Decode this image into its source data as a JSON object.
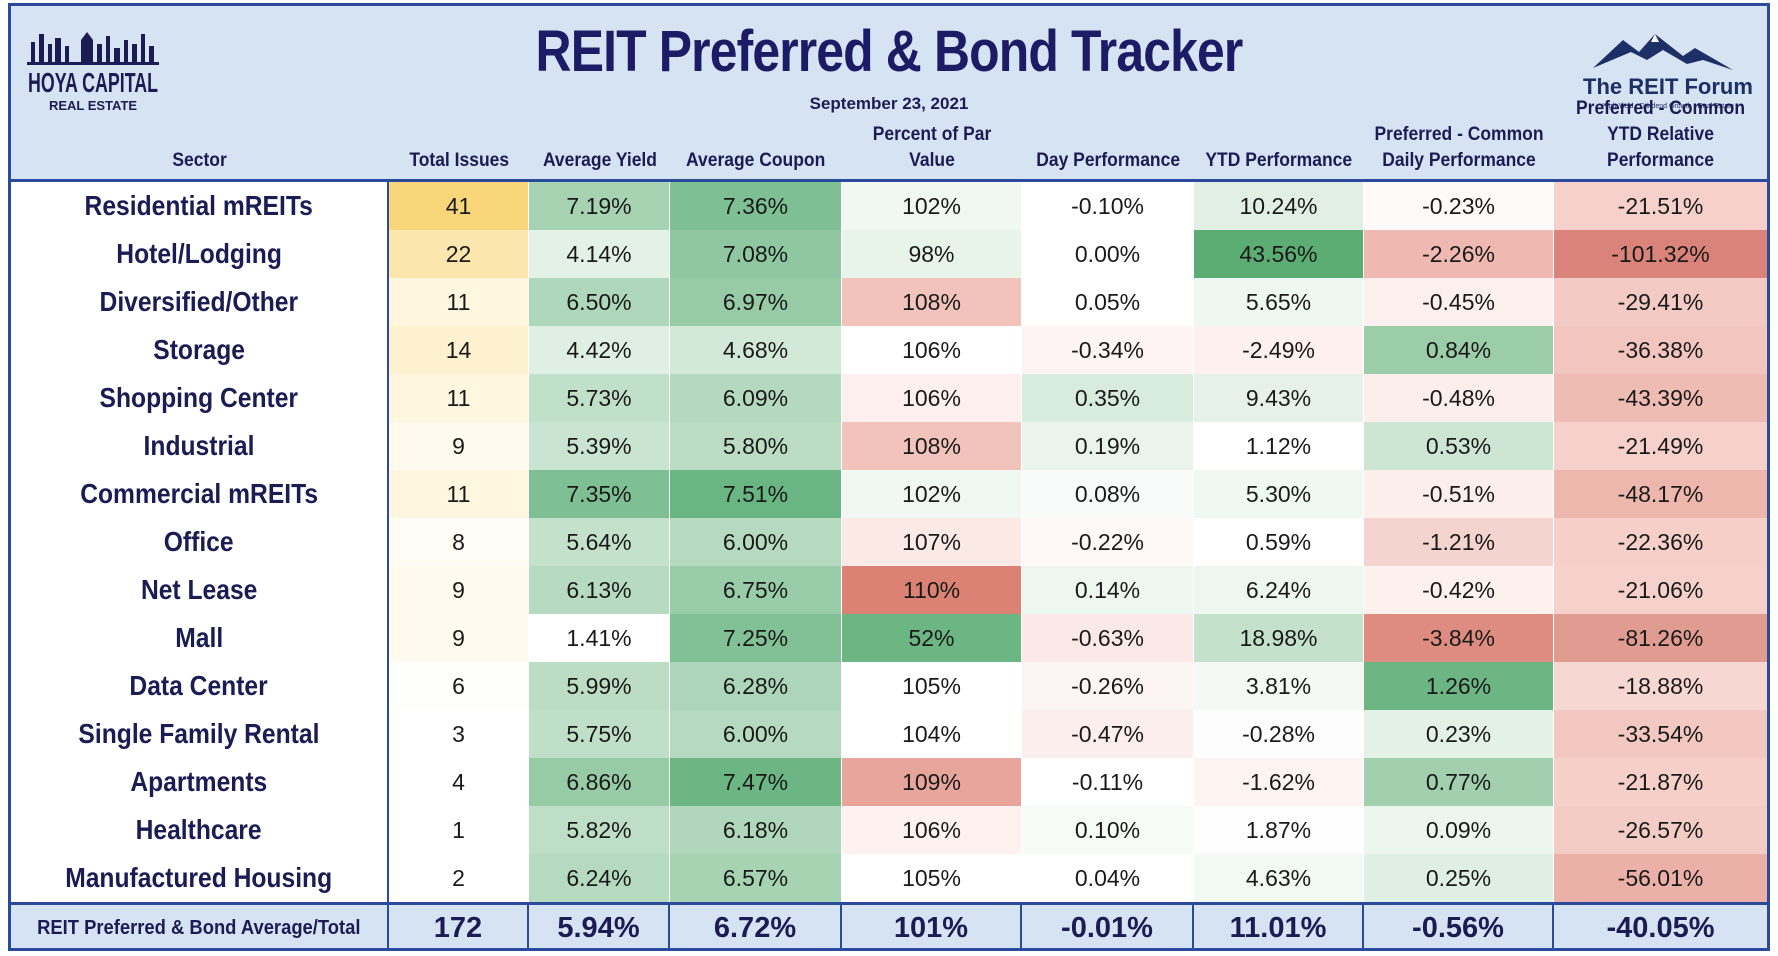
{
  "title": "REIT Preferred & Bond Tracker",
  "date": "September 23, 2021",
  "logo_left": {
    "line1": "HOYA CAPITAL",
    "line2": "REAL ESTATE"
  },
  "logo_right": {
    "name": "The REIT Forum",
    "tagline": "High Yield · Dividend Growth · Real Estate"
  },
  "columns": [
    {
      "label": "Sector"
    },
    {
      "label": "Total Issues"
    },
    {
      "label": "Average Yield"
    },
    {
      "label": "Average Coupon"
    },
    {
      "label": "Percent of Par Value"
    },
    {
      "label": "Day Performance"
    },
    {
      "label": "YTD Performance"
    },
    {
      "label": "Preferred - Common Daily Performance"
    },
    {
      "label": "Preferred - Common YTD Relative Performance"
    }
  ],
  "rows": [
    {
      "sector": "Residential mREITs",
      "cells": [
        "41",
        "7.19%",
        "7.36%",
        "102%",
        "-0.10%",
        "10.24%",
        "-0.23%",
        "-21.51%"
      ],
      "colors": [
        "#f9d679",
        "#a7d3b3",
        "#7ebf93",
        "#f1f7f2",
        "#ffffff",
        "#e1efe4",
        "#fefafa",
        "#f6d0ca"
      ]
    },
    {
      "sector": "Hotel/Lodging",
      "cells": [
        "22",
        "4.14%",
        "7.08%",
        "98%",
        "0.00%",
        "43.56%",
        "-2.26%",
        "-101.32%"
      ],
      "colors": [
        "#fbe6ad",
        "#e3f1e7",
        "#8fc8a0",
        "#e8f3ea",
        "#ffffff",
        "#5cad74",
        "#efb8b0",
        "#d9837a"
      ]
    },
    {
      "sector": "Diversified/Other",
      "cells": [
        "11",
        "6.50%",
        "6.97%",
        "108%",
        "0.05%",
        "5.65%",
        "-0.45%",
        "-29.41%"
      ],
      "colors": [
        "#fef6df",
        "#afd7bb",
        "#96cba6",
        "#f1c3bb",
        "#ffffff",
        "#eff7f1",
        "#fbf0ee",
        "#f3cac4"
      ]
    },
    {
      "sector": "Storage",
      "cells": [
        "14",
        "4.42%",
        "4.68%",
        "106%",
        "-0.34%",
        "-2.49%",
        "0.84%",
        "-36.38%"
      ],
      "colors": [
        "#fdf1cf",
        "#dfefe4",
        "#d2e9d8",
        "#ffffff",
        "#fdf4f3",
        "#fdf0ee",
        "#9ccda9",
        "#f2c6bf"
      ]
    },
    {
      "sector": "Shopping Center",
      "cells": [
        "11",
        "5.73%",
        "6.09%",
        "106%",
        "0.35%",
        "9.43%",
        "-0.48%",
        "-43.39%"
      ],
      "colors": [
        "#fef6df",
        "#c1e0ca",
        "#b4d9be",
        "#fcefed",
        "#d8ecdd",
        "#e6f2e9",
        "#fbeeec",
        "#efbcb4"
      ]
    },
    {
      "sector": "Industrial",
      "cells": [
        "9",
        "5.39%",
        "5.80%",
        "108%",
        "0.19%",
        "1.12%",
        "0.53%",
        "-21.49%"
      ],
      "colors": [
        "#fefaee",
        "#c9e4d0",
        "#bcdcc4",
        "#f1c3bb",
        "#eaf4ed",
        "#ffffff",
        "#cce6d3",
        "#f6d0ca"
      ]
    },
    {
      "sector": "Commercial mREITs",
      "cells": [
        "11",
        "7.35%",
        "7.51%",
        "102%",
        "0.08%",
        "5.30%",
        "-0.51%",
        "-48.17%"
      ],
      "colors": [
        "#fef6df",
        "#7ebf93",
        "#6ab682",
        "#f1f7f2",
        "#f8fbf9",
        "#f0f8f2",
        "#fbeeec",
        "#eeb7ae"
      ]
    },
    {
      "sector": "Office",
      "cells": [
        "8",
        "5.64%",
        "6.00%",
        "107%",
        "-0.22%",
        "0.59%",
        "-1.21%",
        "-22.36%"
      ],
      "colors": [
        "#fefcf4",
        "#c3e1cb",
        "#b6dac0",
        "#fbe9e6",
        "#fef8f7",
        "#ffffff",
        "#f5d4cf",
        "#f6cfc9"
      ]
    },
    {
      "sector": "Net Lease",
      "cells": [
        "9",
        "6.13%",
        "6.75%",
        "110%",
        "0.14%",
        "6.24%",
        "-0.42%",
        "-21.06%"
      ],
      "colors": [
        "#fefaee",
        "#b7dbc1",
        "#99cca8",
        "#db8274",
        "#eef6f0",
        "#edf6ef",
        "#fcf1ef",
        "#f6d1cb"
      ]
    },
    {
      "sector": "Mall",
      "cells": [
        "9",
        "1.41%",
        "7.25%",
        "52%",
        "-0.63%",
        "18.98%",
        "-3.84%",
        "-81.26%"
      ],
      "colors": [
        "#fefaee",
        "#ffffff",
        "#82c196",
        "#6cb684",
        "#fae9e6",
        "#c4e1cc",
        "#de8c80",
        "#e19c92"
      ]
    },
    {
      "sector": "Data Center",
      "cells": [
        "6",
        "5.99%",
        "6.28%",
        "105%",
        "-0.26%",
        "3.81%",
        "1.26%",
        "-18.88%"
      ],
      "colors": [
        "#fefefc",
        "#bcdcc4",
        "#add5b9",
        "#ffffff",
        "#fdf5f3",
        "#f4f9f5",
        "#6cb684",
        "#f7d7d2"
      ]
    },
    {
      "sector": "Single Family Rental",
      "cells": [
        "3",
        "5.75%",
        "6.00%",
        "104%",
        "-0.47%",
        "-0.28%",
        "0.23%",
        "-33.54%"
      ],
      "colors": [
        "#ffffff",
        "#c0dfc9",
        "#b6dac0",
        "#ffffff",
        "#fbeeec",
        "#fefdfd",
        "#e3f1e7",
        "#f2c8c1"
      ]
    },
    {
      "sector": "Apartments",
      "cells": [
        "4",
        "6.86%",
        "7.47%",
        "109%",
        "-0.11%",
        "-1.62%",
        "0.77%",
        "-21.87%"
      ],
      "colors": [
        "#ffffff",
        "#96cba6",
        "#6cb684",
        "#e7a59b",
        "#ffffff",
        "#fdf3f1",
        "#a2d0af",
        "#f6cfc9"
      ]
    },
    {
      "sector": "Healthcare",
      "cells": [
        "1",
        "5.82%",
        "6.18%",
        "106%",
        "0.10%",
        "1.87%",
        "0.09%",
        "-26.57%"
      ],
      "colors": [
        "#ffffff",
        "#bedec7",
        "#b0d7bb",
        "#fdf2f0",
        "#f7fbf8",
        "#fefefe",
        "#ecf6ef",
        "#f4ccc6"
      ]
    },
    {
      "sector": "Manufactured Housing",
      "cells": [
        "2",
        "6.24%",
        "6.57%",
        "105%",
        "0.04%",
        "4.63%",
        "0.25%",
        "-56.01%"
      ],
      "colors": [
        "#ffffff",
        "#b5dabf",
        "#a6d3b2",
        "#ffffff",
        "#ffffff",
        "#f2f8f4",
        "#e0efe4",
        "#ebb0a7"
      ]
    }
  ],
  "footer": {
    "label": "REIT Preferred & Bond Average/Total",
    "cells": [
      "172",
      "5.94%",
      "6.72%",
      "101%",
      "-0.01%",
      "11.01%",
      "-0.56%",
      "-40.05%"
    ]
  }
}
